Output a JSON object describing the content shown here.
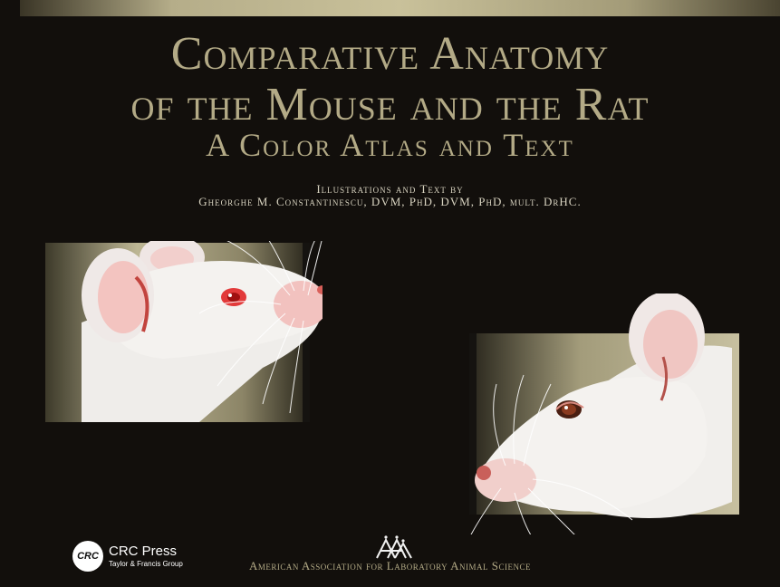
{
  "cover": {
    "title_line1": "Comparative Anatomy",
    "title_line2": "of the Mouse and the Rat",
    "subtitle": "A Color Atlas and Text",
    "credit_line1": "Illustrations and Text by",
    "credit_line2": "Gheorghe M. Constantinescu, DVM, PhD, DVM, PhD, mult. DrHC.",
    "colors": {
      "background": "#120f0c",
      "title_gold": "#b3aa86",
      "panel_gold": "#8c8567",
      "fur_white": "#f2f0ee",
      "eye_red": "#e23a3a"
    }
  },
  "illustrations": {
    "left": "mouse-head-icon",
    "right": "rat-head-icon"
  },
  "publisher": {
    "logo_text": "CRC",
    "name": "CRC Press",
    "group": "Taylor & Francis Group"
  },
  "association": {
    "logo": "aalas-triangles-icon",
    "name": "American Association for Laboratory Animal Science"
  }
}
